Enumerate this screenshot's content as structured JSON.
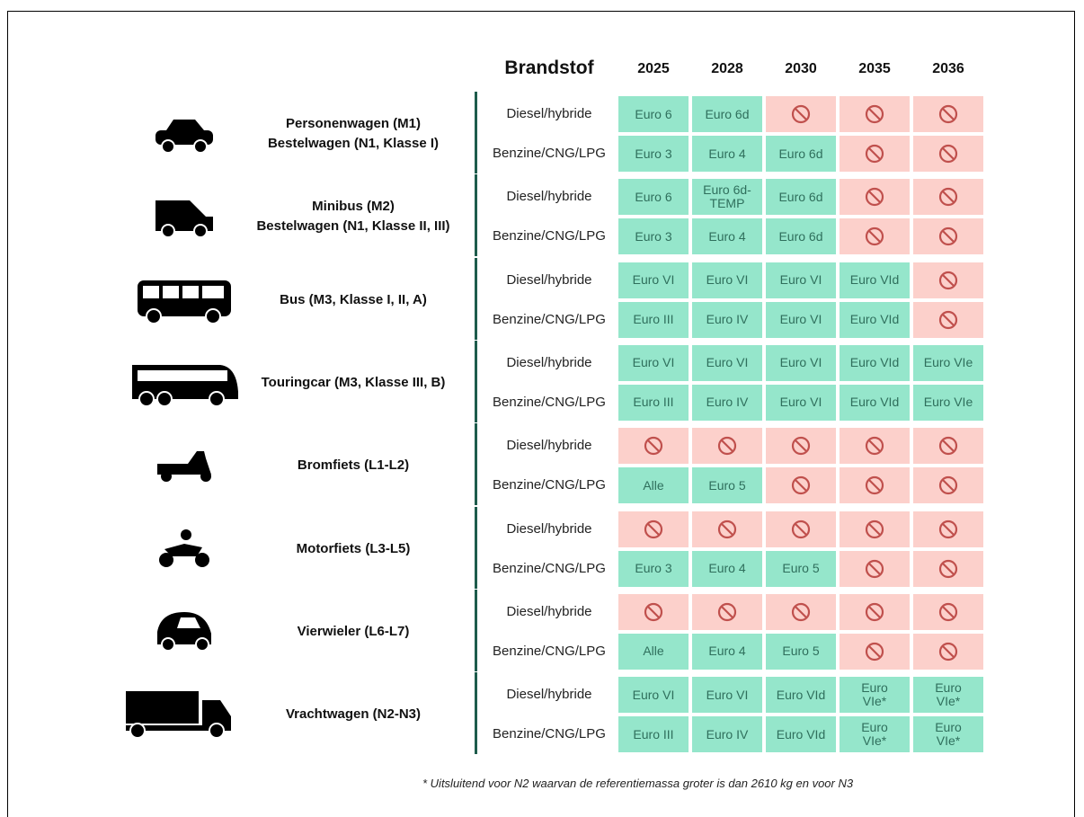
{
  "header": {
    "fuel": "Brandstof",
    "years": [
      "2025",
      "2028",
      "2030",
      "2035",
      "2036"
    ]
  },
  "groups": [
    {
      "label": [
        "Personenwagen (M1)",
        "Bestelwagen (N1, Klasse I)"
      ],
      "rows": [
        {
          "fuel": "Diesel/hybride",
          "cells": [
            "Euro 6",
            "Euro 6d",
            null,
            null,
            null
          ]
        },
        {
          "fuel": "Benzine/CNG/LPG",
          "cells": [
            "Euro 3",
            "Euro 4",
            "Euro 6d",
            null,
            null
          ]
        }
      ]
    },
    {
      "label": [
        "Minibus (M2)",
        "Bestelwagen (N1, Klasse II, III)"
      ],
      "rows": [
        {
          "fuel": "Diesel/hybride",
          "cells": [
            "Euro 6",
            "Euro 6d-TEMP",
            "Euro 6d",
            null,
            null
          ]
        },
        {
          "fuel": "Benzine/CNG/LPG",
          "cells": [
            "Euro 3",
            "Euro 4",
            "Euro 6d",
            null,
            null
          ]
        }
      ]
    },
    {
      "label": [
        "Bus (M3, Klasse I, II, A)"
      ],
      "rows": [
        {
          "fuel": "Diesel/hybride",
          "cells": [
            "Euro VI",
            "Euro VI",
            "Euro VI",
            "Euro VId",
            null
          ]
        },
        {
          "fuel": "Benzine/CNG/LPG",
          "cells": [
            "Euro III",
            "Euro IV",
            "Euro VI",
            "Euro VId",
            null
          ]
        }
      ]
    },
    {
      "label": [
        "Touringcar (M3, Klasse III, B)"
      ],
      "rows": [
        {
          "fuel": "Diesel/hybride",
          "cells": [
            "Euro VI",
            "Euro VI",
            "Euro VI",
            "Euro VId",
            "Euro VIe"
          ]
        },
        {
          "fuel": "Benzine/CNG/LPG",
          "cells": [
            "Euro III",
            "Euro IV",
            "Euro VI",
            "Euro VId",
            "Euro VIe"
          ]
        }
      ]
    },
    {
      "label": [
        "Bromfiets (L1-L2)"
      ],
      "rows": [
        {
          "fuel": "Diesel/hybride",
          "cells": [
            null,
            null,
            null,
            null,
            null
          ]
        },
        {
          "fuel": "Benzine/CNG/LPG",
          "cells": [
            "Alle",
            "Euro 5",
            null,
            null,
            null
          ]
        }
      ]
    },
    {
      "label": [
        "Motorfiets (L3-L5)"
      ],
      "rows": [
        {
          "fuel": "Diesel/hybride",
          "cells": [
            null,
            null,
            null,
            null,
            null
          ]
        },
        {
          "fuel": "Benzine/CNG/LPG",
          "cells": [
            "Euro 3",
            "Euro 4",
            "Euro 5",
            null,
            null
          ]
        }
      ]
    },
    {
      "label": [
        "Vierwieler (L6-L7)"
      ],
      "rows": [
        {
          "fuel": "Diesel/hybride",
          "cells": [
            null,
            null,
            null,
            null,
            null
          ]
        },
        {
          "fuel": "Benzine/CNG/LPG",
          "cells": [
            "Alle",
            "Euro 4",
            "Euro 5",
            null,
            null
          ]
        }
      ]
    },
    {
      "label": [
        "Vrachtwagen (N2-N3)"
      ],
      "rows": [
        {
          "fuel": "Diesel/hybride",
          "cells": [
            "Euro VI",
            "Euro VI",
            "Euro VId",
            "Euro VIe*",
            "Euro VIe*"
          ]
        },
        {
          "fuel": "Benzine/CNG/LPG",
          "cells": [
            "Euro III",
            "Euro IV",
            "Euro VId",
            "Euro VIe*",
            "Euro VIe*"
          ]
        }
      ]
    }
  ],
  "footnote": "* Uitsluitend voor N2 waarvan de referentiemassa groter is dan 2610 kg en voor N3"
}
